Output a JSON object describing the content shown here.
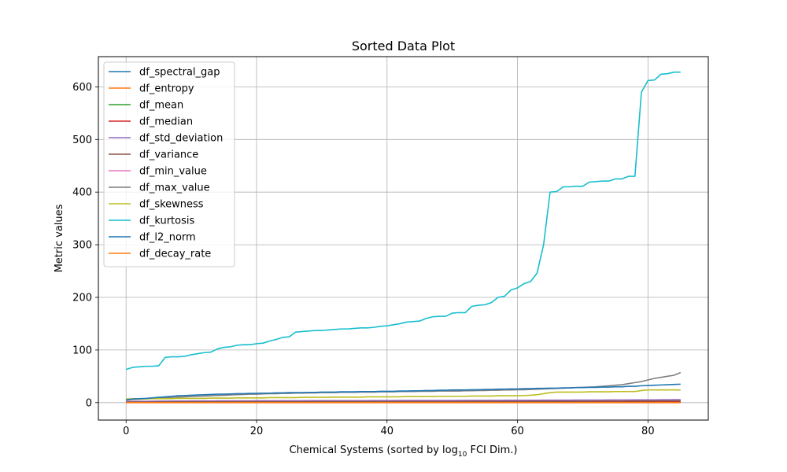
{
  "chart_data": {
    "type": "line",
    "title": "Sorted Data Plot",
    "xlabel_prefix": "Chemical Systems (sorted by log",
    "xlabel_sub": "10",
    "xlabel_suffix": " FCI Dim.)",
    "ylabel": "Metric values",
    "xlim": [
      -4.25,
      89.25
    ],
    "ylim": [
      -33.2,
      657.4
    ],
    "xticks": [
      0,
      20,
      40,
      60,
      80
    ],
    "yticks": [
      0,
      100,
      200,
      300,
      400,
      500,
      600
    ],
    "grid": true,
    "legend_position": "top-left",
    "x": [
      0,
      1,
      2,
      3,
      4,
      5,
      6,
      7,
      8,
      9,
      10,
      11,
      12,
      13,
      14,
      15,
      16,
      17,
      18,
      19,
      20,
      21,
      22,
      23,
      24,
      25,
      26,
      27,
      28,
      29,
      30,
      31,
      32,
      33,
      34,
      35,
      36,
      37,
      38,
      39,
      40,
      41,
      42,
      43,
      44,
      45,
      46,
      47,
      48,
      49,
      50,
      51,
      52,
      53,
      54,
      55,
      56,
      57,
      58,
      59,
      60,
      61,
      62,
      63,
      64,
      65,
      66,
      67,
      68,
      69,
      70,
      71,
      72,
      73,
      74,
      75,
      76,
      77,
      78,
      79,
      80,
      81,
      82,
      83,
      84,
      85
    ],
    "series": [
      {
        "name": "df_spectral_gap",
        "color": "#1f77b4",
        "values": [
          1,
          1,
          1,
          1,
          1,
          1,
          1,
          1,
          1,
          1,
          1,
          1,
          1,
          1,
          1,
          1,
          1,
          1,
          1,
          1,
          1,
          1,
          1,
          1,
          1,
          1,
          1,
          1,
          1,
          1,
          1,
          1,
          1,
          1,
          1,
          1,
          1,
          1,
          1,
          1,
          1,
          1,
          1,
          1,
          1,
          1,
          1,
          1,
          1,
          1,
          1,
          1,
          1,
          1,
          1,
          1,
          1,
          1,
          1,
          1,
          1,
          1,
          1,
          1,
          1,
          1,
          1,
          1,
          1,
          1,
          1,
          1,
          1,
          1,
          1,
          1,
          1,
          1,
          1,
          1,
          1,
          1,
          1,
          1,
          1,
          1
        ]
      },
      {
        "name": "df_entropy",
        "color": "#ff7f0e",
        "values": [
          2,
          2,
          2,
          2,
          2,
          2,
          2,
          2,
          2,
          2,
          2,
          2,
          2,
          2,
          2,
          2,
          2,
          2,
          2,
          2,
          2,
          2,
          2,
          2,
          2,
          2,
          2,
          2,
          2,
          2,
          2,
          2,
          2,
          2,
          2,
          2,
          2,
          2,
          2,
          2,
          2,
          2,
          2,
          2,
          2,
          2,
          2,
          2,
          2,
          2,
          2,
          2,
          2,
          2,
          2,
          2,
          2,
          2,
          2,
          2,
          2,
          2,
          2,
          2,
          2,
          2,
          2,
          2,
          2,
          2,
          2,
          2,
          2,
          2,
          2,
          2,
          2,
          2,
          2,
          2,
          2,
          2,
          2,
          2,
          2,
          2
        ]
      },
      {
        "name": "df_mean",
        "color": "#2ca02c",
        "values": [
          0.5,
          0.6,
          0.7,
          0.7,
          0.8,
          0.8,
          0.9,
          0.9,
          0.9,
          1,
          1,
          1,
          1,
          1,
          1,
          1,
          1.1,
          1.1,
          1.1,
          1.1,
          1.1,
          1.1,
          1.1,
          1.2,
          1.2,
          1.2,
          1.2,
          1.2,
          1.2,
          1.2,
          1.2,
          1.3,
          1.3,
          1.3,
          1.3,
          1.3,
          1.3,
          1.3,
          1.3,
          1.4,
          1.4,
          1.4,
          1.4,
          1.4,
          1.4,
          1.4,
          1.5,
          1.5,
          1.5,
          1.5,
          1.5,
          1.5,
          1.5,
          1.6,
          1.6,
          1.6,
          1.6,
          1.6,
          1.7,
          1.7,
          1.7,
          1.7,
          1.8,
          1.8,
          1.8,
          1.9,
          1.9,
          1.9,
          2,
          2,
          2,
          2.1,
          2.1,
          2.1,
          2.2,
          2.2,
          2.3,
          2.3,
          2.4,
          2.5,
          2.5,
          2.6,
          2.7,
          2.8,
          2.9,
          3
        ]
      },
      {
        "name": "df_median",
        "color": "#d62728",
        "values": [
          0.3,
          0.3,
          0.4,
          0.4,
          0.4,
          0.5,
          0.5,
          0.5,
          0.5,
          0.5,
          0.6,
          0.6,
          0.6,
          0.6,
          0.6,
          0.6,
          0.7,
          0.7,
          0.7,
          0.7,
          0.7,
          0.7,
          0.7,
          0.8,
          0.8,
          0.8,
          0.8,
          0.8,
          0.8,
          0.8,
          0.8,
          0.9,
          0.9,
          0.9,
          0.9,
          0.9,
          0.9,
          0.9,
          0.9,
          1,
          1,
          1,
          1,
          1,
          1,
          1,
          1,
          1,
          1,
          1,
          1,
          1,
          1.1,
          1.1,
          1.1,
          1.1,
          1.1,
          1.1,
          1.2,
          1.2,
          1.2,
          1.2,
          1.2,
          1.3,
          1.3,
          1.3,
          1.3,
          1.4,
          1.4,
          1.4,
          1.4,
          1.5,
          1.5,
          1.5,
          1.5,
          1.6,
          1.6,
          1.6,
          1.7,
          1.7,
          1.8,
          1.8,
          1.8,
          1.9,
          1.9,
          2
        ]
      },
      {
        "name": "df_std_deviation",
        "color": "#9467bd",
        "values": [
          2,
          2.2,
          2.4,
          2.5,
          2.6,
          2.7,
          2.8,
          2.9,
          3,
          3,
          3.1,
          3.1,
          3.2,
          3.2,
          3.3,
          3.3,
          3.3,
          3.4,
          3.4,
          3.4,
          3.5,
          3.5,
          3.5,
          3.5,
          3.6,
          3.6,
          3.6,
          3.6,
          3.7,
          3.7,
          3.7,
          3.7,
          3.7,
          3.8,
          3.8,
          3.8,
          3.8,
          3.8,
          3.9,
          3.9,
          3.9,
          3.9,
          4,
          4,
          4,
          4,
          4,
          4.1,
          4.1,
          4.1,
          4.1,
          4.2,
          4.2,
          4.2,
          4.2,
          4.3,
          4.3,
          4.3,
          4.4,
          4.4,
          4.4,
          4.5,
          4.5,
          4.5,
          4.6,
          4.6,
          4.6,
          4.7,
          4.7,
          4.8,
          4.8,
          4.8,
          4.9,
          4.9,
          5,
          5,
          5.1,
          5.1,
          5.2,
          5.2,
          5.3,
          5.3,
          5.4,
          5.4,
          5.5,
          5.5
        ]
      },
      {
        "name": "df_variance",
        "color": "#8c564b",
        "values": [
          1,
          1.1,
          1.1,
          1.2,
          1.2,
          1.3,
          1.3,
          1.3,
          1.4,
          1.4,
          1.4,
          1.4,
          1.5,
          1.5,
          1.5,
          1.5,
          1.5,
          1.6,
          1.6,
          1.6,
          1.6,
          1.6,
          1.6,
          1.7,
          1.7,
          1.7,
          1.7,
          1.7,
          1.7,
          1.7,
          1.8,
          1.8,
          1.8,
          1.8,
          1.8,
          1.8,
          1.8,
          1.9,
          1.9,
          1.9,
          1.9,
          1.9,
          1.9,
          2,
          2,
          2,
          2,
          2,
          2,
          2.1,
          2.1,
          2.1,
          2.1,
          2.1,
          2.2,
          2.2,
          2.2,
          2.2,
          2.3,
          2.3,
          2.3,
          2.3,
          2.4,
          2.4,
          2.4,
          2.4,
          2.5,
          2.5,
          2.5,
          2.6,
          2.6,
          2.6,
          2.7,
          2.7,
          2.8,
          2.8,
          2.8,
          2.9,
          2.9,
          3,
          3,
          3.1,
          3.1,
          3.2,
          3.2,
          3.3
        ]
      },
      {
        "name": "df_min_value",
        "color": "#e377c2",
        "values": [
          0,
          0,
          0,
          0,
          0,
          0,
          0,
          0,
          0,
          0,
          0,
          0,
          0,
          0,
          0,
          0,
          0,
          0,
          0,
          0,
          0,
          0,
          0,
          0,
          0,
          0,
          0,
          0,
          0,
          0,
          0,
          0,
          0,
          0,
          0,
          0,
          0,
          0,
          0,
          0,
          0,
          0,
          0,
          0,
          0,
          0,
          0,
          0,
          0,
          0,
          0,
          0,
          0,
          0,
          0,
          0,
          0,
          0,
          0,
          0,
          0,
          0,
          0,
          0,
          0,
          0,
          0,
          0,
          0,
          0,
          0,
          0,
          0,
          0,
          0,
          0,
          0,
          0,
          0,
          0,
          0,
          0,
          0,
          0,
          0,
          0
        ]
      },
      {
        "name": "df_max_value",
        "color": "#7f7f7f",
        "values": [
          5,
          6,
          6.5,
          7,
          8,
          9,
          9.5,
          10,
          10.5,
          11,
          11.5,
          12,
          12.5,
          13,
          13.5,
          14,
          14.5,
          15,
          15.5,
          16,
          16,
          16.5,
          17,
          17,
          17.5,
          17.5,
          18,
          18,
          18.5,
          18.5,
          19,
          19,
          19,
          19.5,
          19.5,
          19.5,
          20,
          20,
          20,
          20.5,
          20.5,
          20.5,
          21,
          21,
          21,
          21.5,
          21.5,
          21.5,
          22,
          22,
          22,
          22,
          22.5,
          22.5,
          23,
          23,
          23.5,
          23.5,
          24,
          24,
          24.5,
          24.5,
          25,
          25.5,
          26,
          26.5,
          27,
          27.5,
          28,
          28.5,
          29,
          29.5,
          30,
          31,
          32,
          33,
          34,
          36,
          38,
          40,
          43,
          46,
          48,
          50,
          52,
          57
        ]
      },
      {
        "name": "df_skewness",
        "color": "#bcbd22",
        "values": [
          7,
          7,
          7,
          7,
          7.5,
          7.5,
          7.5,
          7.5,
          8,
          8,
          8,
          8,
          8,
          8.5,
          8.5,
          8.5,
          8.5,
          9,
          9,
          9,
          9,
          9,
          9.5,
          9.5,
          9.5,
          9.5,
          9.5,
          10,
          10,
          10,
          10,
          10,
          10.5,
          10.5,
          10.5,
          10.5,
          10.5,
          11,
          11,
          11,
          11,
          11,
          11,
          11.5,
          11.5,
          11.5,
          11.5,
          11.5,
          12,
          12,
          12,
          12,
          12,
          12.5,
          12.5,
          12.5,
          12.5,
          13,
          13,
          13,
          13,
          13.5,
          14,
          15,
          17,
          19,
          20,
          20,
          20,
          20,
          20,
          20.5,
          20.5,
          20.5,
          20.5,
          21,
          21,
          21,
          21,
          23,
          24,
          24,
          24,
          24,
          24,
          24
        ]
      },
      {
        "name": "df_kurtosis",
        "color": "#17becf",
        "values": [
          63,
          67,
          68,
          69,
          69,
          70,
          86,
          87,
          87,
          88,
          91,
          93,
          95,
          96,
          102,
          105,
          106,
          109,
          110,
          110,
          112,
          113,
          117,
          120,
          124,
          125,
          134,
          135,
          136,
          137,
          137,
          138,
          139,
          140,
          140,
          141,
          142,
          142,
          143,
          145,
          146,
          148,
          150,
          153,
          154,
          155,
          160,
          163,
          164,
          164,
          170,
          171,
          171,
          183,
          185,
          186,
          190,
          200,
          202,
          214,
          218,
          226,
          230,
          246,
          300,
          400,
          401,
          410,
          410,
          411,
          411,
          419,
          420,
          421,
          421,
          425,
          425,
          430,
          430,
          590,
          612,
          613,
          624,
          625,
          628,
          628
        ]
      },
      {
        "name": "df_l2_norm",
        "color": "#1f77b4",
        "values": [
          5,
          7,
          7.5,
          8,
          9,
          10,
          11,
          12,
          13,
          13.5,
          14,
          14.5,
          15,
          15.5,
          16,
          16,
          16.5,
          17,
          17,
          17.5,
          17.5,
          18,
          18,
          18.5,
          18.5,
          19,
          19,
          19,
          19.5,
          19.5,
          20,
          20,
          20,
          20.5,
          20.5,
          20.5,
          21,
          21,
          21,
          21.5,
          21.5,
          21.5,
          22,
          22,
          22.5,
          22.5,
          23,
          23,
          23.5,
          23.5,
          24,
          24,
          24,
          24.5,
          24.5,
          25,
          25,
          25.5,
          25.5,
          26,
          26,
          26.5,
          26.5,
          27,
          27,
          27.5,
          27.5,
          28,
          28,
          28.5,
          28.5,
          29,
          29,
          29.5,
          29.5,
          30,
          30,
          31,
          31,
          32,
          32.5,
          33,
          33.5,
          34,
          34.5,
          35
        ]
      },
      {
        "name": "df_decay_rate",
        "color": "#ff7f0e",
        "values": [
          0,
          0,
          0,
          0,
          0,
          0,
          0,
          0,
          0,
          0,
          0,
          0,
          0,
          0,
          0,
          0,
          0,
          0,
          0,
          0,
          0,
          0,
          0,
          0,
          0,
          0,
          0,
          0,
          0,
          0,
          0,
          0,
          0,
          0,
          0,
          0,
          0,
          0,
          0,
          0,
          0,
          0,
          0,
          0,
          0,
          0,
          0,
          0,
          0,
          0,
          0,
          0,
          0,
          0,
          0,
          0,
          0,
          0,
          0,
          0,
          0,
          0,
          0,
          0,
          0,
          0,
          0,
          0,
          0,
          0,
          0,
          0,
          0,
          0,
          0,
          0,
          0,
          0,
          0,
          0,
          0,
          0,
          0,
          0,
          0,
          0
        ]
      }
    ]
  }
}
